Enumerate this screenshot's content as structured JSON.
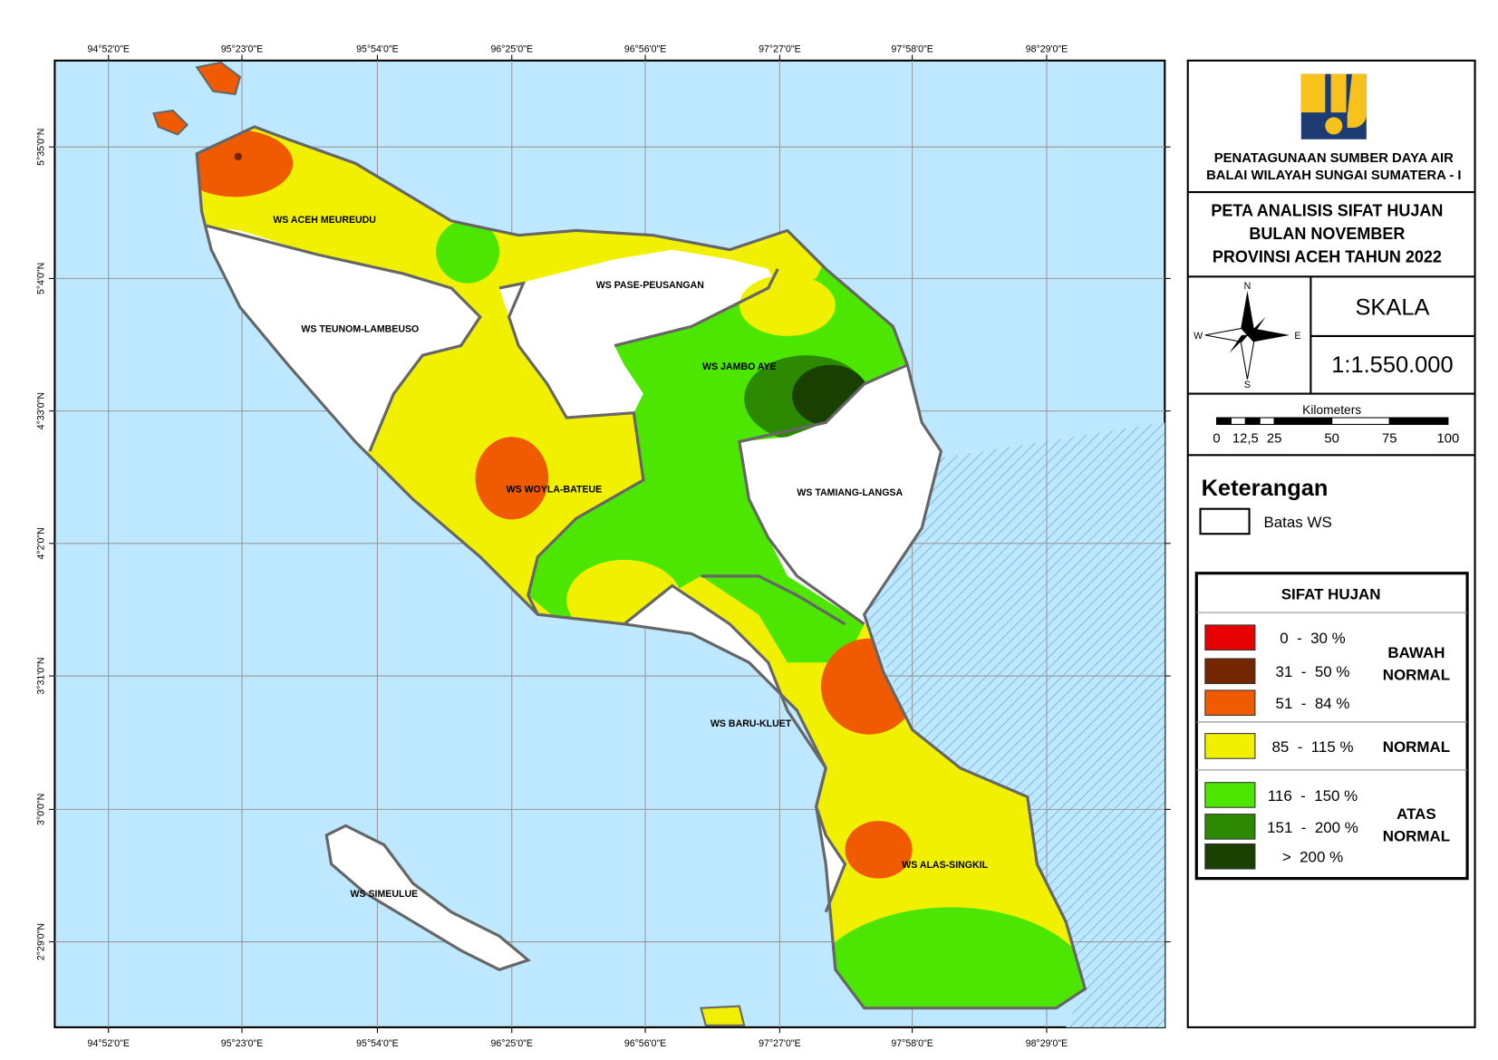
{
  "map": {
    "lon_labels": [
      "94°52'0\"E",
      "95°23'0\"E",
      "95°54'0\"E",
      "96°25'0\"E",
      "96°56'0\"E",
      "97°27'0\"E",
      "97°58'0\"E",
      "98°29'0\"E"
    ],
    "lat_labels": [
      "5°35'0\"N",
      "5°4'0\"N",
      "4°33'0\"N",
      "4°2'0\"N",
      "3°31'0\"N",
      "3°0'0\"N",
      "2°29'0\"N"
    ],
    "regions": [
      "WS ACEH MEUREUDU",
      "WS TEUNOM-LAMBEUSO",
      "WS PASE-PEUSANGAN",
      "WS JAMBO AYE",
      "WS WOYLA-BATEUE",
      "WS TAMIANG-LANGSA",
      "WS BARU-KLUET",
      "WS ALAS-SINGKIL",
      "WS SIMEULUE"
    ]
  },
  "header": {
    "org": [
      "PENATAGUNAAN SUMBER DAYA AIR",
      "BALAI WILAYAH SUNGAI SUMATERA - I"
    ],
    "title": [
      "PETA ANALISIS SIFAT HUJAN",
      "BULAN NOVEMBER",
      "PROVINSI ACEH TAHUN 2022"
    ]
  },
  "compass": {
    "n": "N",
    "s": "S",
    "e": "E",
    "w": "W"
  },
  "scale": {
    "label": "SKALA",
    "ratio": "1:1.550.000",
    "unit": "Kilometers",
    "ticks": [
      "0",
      "12,5",
      "25",
      "50",
      "75",
      "100"
    ]
  },
  "legend": {
    "title": "Keterangan",
    "boundary": "Batas WS",
    "table_title": "SIFAT HUJAN",
    "classes": [
      {
        "label": "0  -  30 %",
        "color": "#e60000"
      },
      {
        "label": "31  -  50 %",
        "color": "#732600"
      },
      {
        "label": "51  -  84 %",
        "color": "#f05a00"
      },
      {
        "label": "85  -  115 %",
        "color": "#f0f000"
      },
      {
        "label": "116  -  150 %",
        "color": "#4ce600"
      },
      {
        "label": "151  -  200 %",
        "color": "#2d8a00"
      },
      {
        "label": ">  200 %",
        "color": "#1a4000"
      }
    ],
    "groups": [
      [
        "BAWAH",
        "NORMAL"
      ],
      [
        "NORMAL"
      ],
      [
        "ATAS",
        "NORMAL"
      ]
    ]
  }
}
